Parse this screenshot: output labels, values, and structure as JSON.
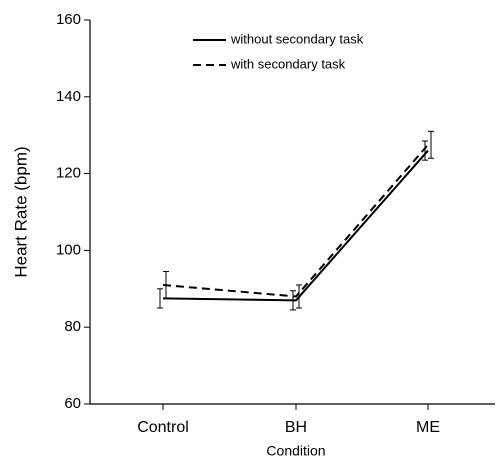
{
  "chart_data": {
    "type": "line",
    "x_label": "Condition",
    "y_label": "Heart Rate (bpm)",
    "categories": [
      "Control",
      "BH",
      "ME"
    ],
    "series": [
      {
        "name": "without secondary task",
        "color": "#000000",
        "dash": "solid",
        "values": [
          87.5,
          87,
          126
        ],
        "errors": [
          2.5,
          2.5,
          2.5
        ]
      },
      {
        "name": "with secondary task",
        "color": "#000000",
        "dash": "dashed",
        "values": [
          91,
          88,
          127.5
        ],
        "errors": [
          3.5,
          3,
          3.5
        ]
      }
    ],
    "ylim": [
      60,
      160
    ],
    "yticks": [
      60,
      80,
      100,
      120,
      140,
      160
    ],
    "legend": "upper center"
  }
}
